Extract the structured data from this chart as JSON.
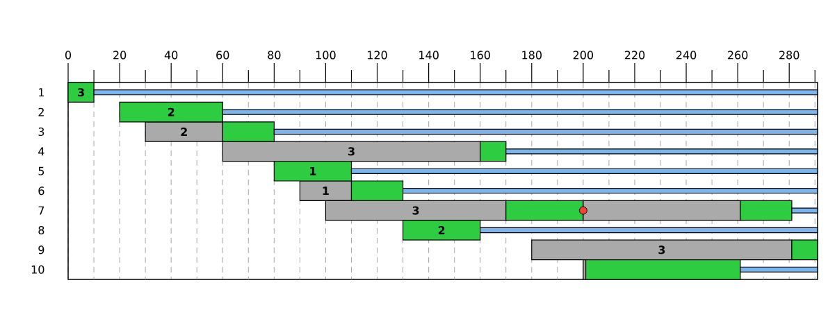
{
  "chart_data": {
    "type": "bar",
    "orientation": "horizontal",
    "categories": [
      "1",
      "2",
      "3",
      "4",
      "5",
      "6",
      "7",
      "8",
      "9",
      "10"
    ],
    "xlim": [
      0,
      291
    ],
    "xticks": [
      0,
      {
        "value": 10,
        "label": null
      },
      20,
      {
        "value": 30,
        "label": null
      },
      40,
      {
        "value": 50,
        "label": null
      },
      60,
      {
        "value": 70,
        "label": null
      },
      80,
      {
        "value": 90,
        "label": null
      },
      100,
      {
        "value": 110,
        "label": null
      },
      120,
      {
        "value": 130,
        "label": null
      },
      140,
      {
        "value": 150,
        "label": null
      },
      160,
      {
        "value": 170,
        "label": null
      },
      180,
      {
        "value": 190,
        "label": null
      },
      200,
      {
        "value": 210,
        "label": null
      },
      220,
      {
        "value": 230,
        "label": null
      },
      240,
      {
        "value": 250,
        "label": null
      },
      260,
      {
        "value": 270,
        "label": null
      },
      280,
      {
        "value": 290,
        "label": null
      }
    ],
    "grid": "x",
    "series": [
      {
        "color": "#aaaaaa",
        "base": [
          null,
          null,
          30,
          60,
          null,
          90,
          100,
          null,
          180,
          200
        ],
        "values": [
          null,
          null,
          30,
          100,
          null,
          20,
          70,
          null,
          101,
          1
        ]
      },
      {
        "color": "#2ecc40",
        "base": [
          0,
          20,
          60,
          160,
          80,
          110,
          170,
          130,
          281,
          201
        ],
        "values": [
          10,
          40,
          20,
          10,
          30,
          20,
          30,
          30,
          10,
          60
        ]
      },
      {
        "color": "#aaaaaa",
        "base": [
          null,
          null,
          null,
          null,
          null,
          null,
          200,
          null,
          null,
          null
        ],
        "values": [
          null,
          null,
          null,
          null,
          null,
          null,
          61,
          null,
          null,
          null
        ]
      },
      {
        "color": "#2ecc40",
        "base": [
          null,
          null,
          null,
          null,
          null,
          null,
          261,
          null,
          null,
          null
        ],
        "values": [
          null,
          null,
          null,
          null,
          null,
          null,
          20,
          null,
          null,
          null
        ]
      },
      {
        "color": "#7cb5ec",
        "base": [
          10,
          60,
          80,
          170,
          110,
          130,
          281,
          160,
          null,
          261
        ],
        "values": [
          281,
          231,
          211,
          121,
          181,
          161,
          10,
          131,
          null,
          30
        ]
      },
      {
        "type": "scatter",
        "color": "#f44336",
        "marker": "circle",
        "values": [
          null,
          null,
          null,
          null,
          null,
          null,
          200,
          null,
          null,
          null
        ]
      }
    ],
    "annotations": [
      {
        "text": "3",
        "x": 5,
        "y": "1"
      },
      {
        "text": "2",
        "x": 40,
        "y": "2"
      },
      {
        "text": "2",
        "x": 45,
        "y": "3"
      },
      {
        "text": "3",
        "x": 110,
        "y": "4"
      },
      {
        "text": "1",
        "x": 95,
        "y": "5"
      },
      {
        "text": "1",
        "x": 100,
        "y": "6"
      },
      {
        "text": "3",
        "x": 135,
        "y": "7"
      },
      {
        "text": "2",
        "x": 145,
        "y": "8"
      },
      {
        "text": "3",
        "x": 230.5,
        "y": "9"
      }
    ]
  }
}
